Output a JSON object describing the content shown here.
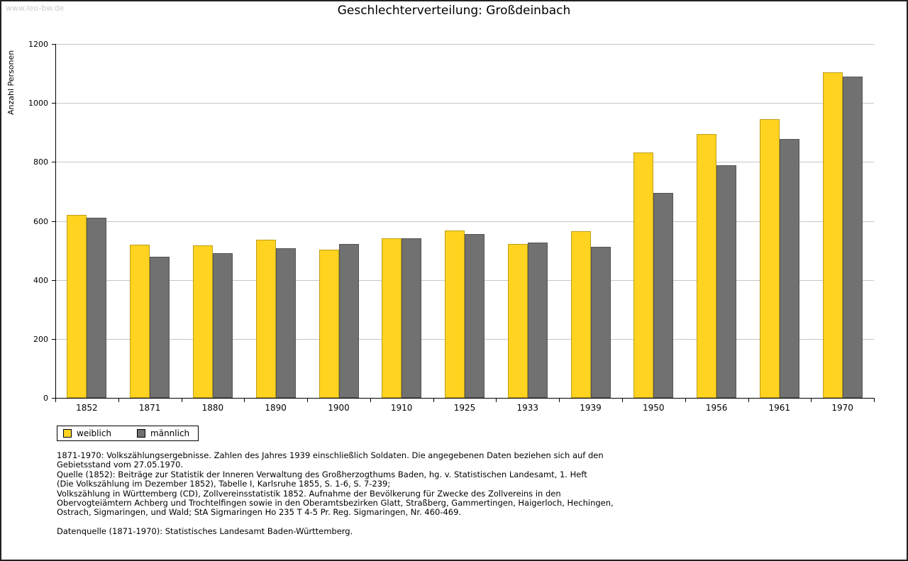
{
  "watermark": "www.leo-bw.de",
  "title": "Geschlechterverteilung: Großdeinbach",
  "chart_data": {
    "type": "bar",
    "title": "Geschlechterverteilung: Großdeinbach",
    "xlabel": "",
    "ylabel": "Anzahl Personen",
    "ylim": [
      0,
      1200
    ],
    "ytick_interval": 200,
    "grid": true,
    "legend_position": "bottom-left",
    "categories": [
      "1852",
      "1871",
      "1880",
      "1890",
      "1900",
      "1910",
      "1925",
      "1933",
      "1939",
      "1950",
      "1956",
      "1961",
      "1970"
    ],
    "series": [
      {
        "name": "weiblich",
        "color": "#FFD320",
        "values": [
          620,
          520,
          518,
          536,
          503,
          541,
          568,
          521,
          565,
          831,
          894,
          945,
          1105
        ]
      },
      {
        "name": "männlich",
        "color": "#717171",
        "values": [
          610,
          478,
          491,
          508,
          521,
          541,
          556,
          526,
          512,
          695,
          790,
          878,
          1089
        ]
      }
    ]
  },
  "footnotes": {
    "lines": [
      "1871-1970: Volkszählungsergebnisse. Zahlen des Jahres 1939 einschließlich Soldaten. Die angegebenen Daten beziehen sich auf den",
      "Gebietsstand vom 27.05.1970.",
      "Quelle (1852): Beiträge zur Statistik der Inneren Verwaltung des Großherzogthums Baden, hg. v. Statistischen Landesamt, 1. Heft",
      "(Die Volkszählung im Dezember 1852), Tabelle I, Karlsruhe 1855, S. 1-6, S. 7-239;",
      "Volkszählung in Württemberg (CD), Zollvereinsstatistik 1852. Aufnahme der Bevölkerung für Zwecke des Zollvereins in den",
      "Obervogteiämtern Achberg und Trochtelfingen sowie in den Oberamtsbezirken Glatt, Straßberg, Gammertingen, Haigerloch, Hechingen,",
      "Ostrach, Sigmaringen, und Wald; StA Sigmaringen Ho 235 T 4-5 Pr. Reg. Sigmaringen, Nr. 460-469.",
      "",
      "Datenquelle (1871-1970): Statistisches Landesamt Baden-Württemberg."
    ]
  }
}
